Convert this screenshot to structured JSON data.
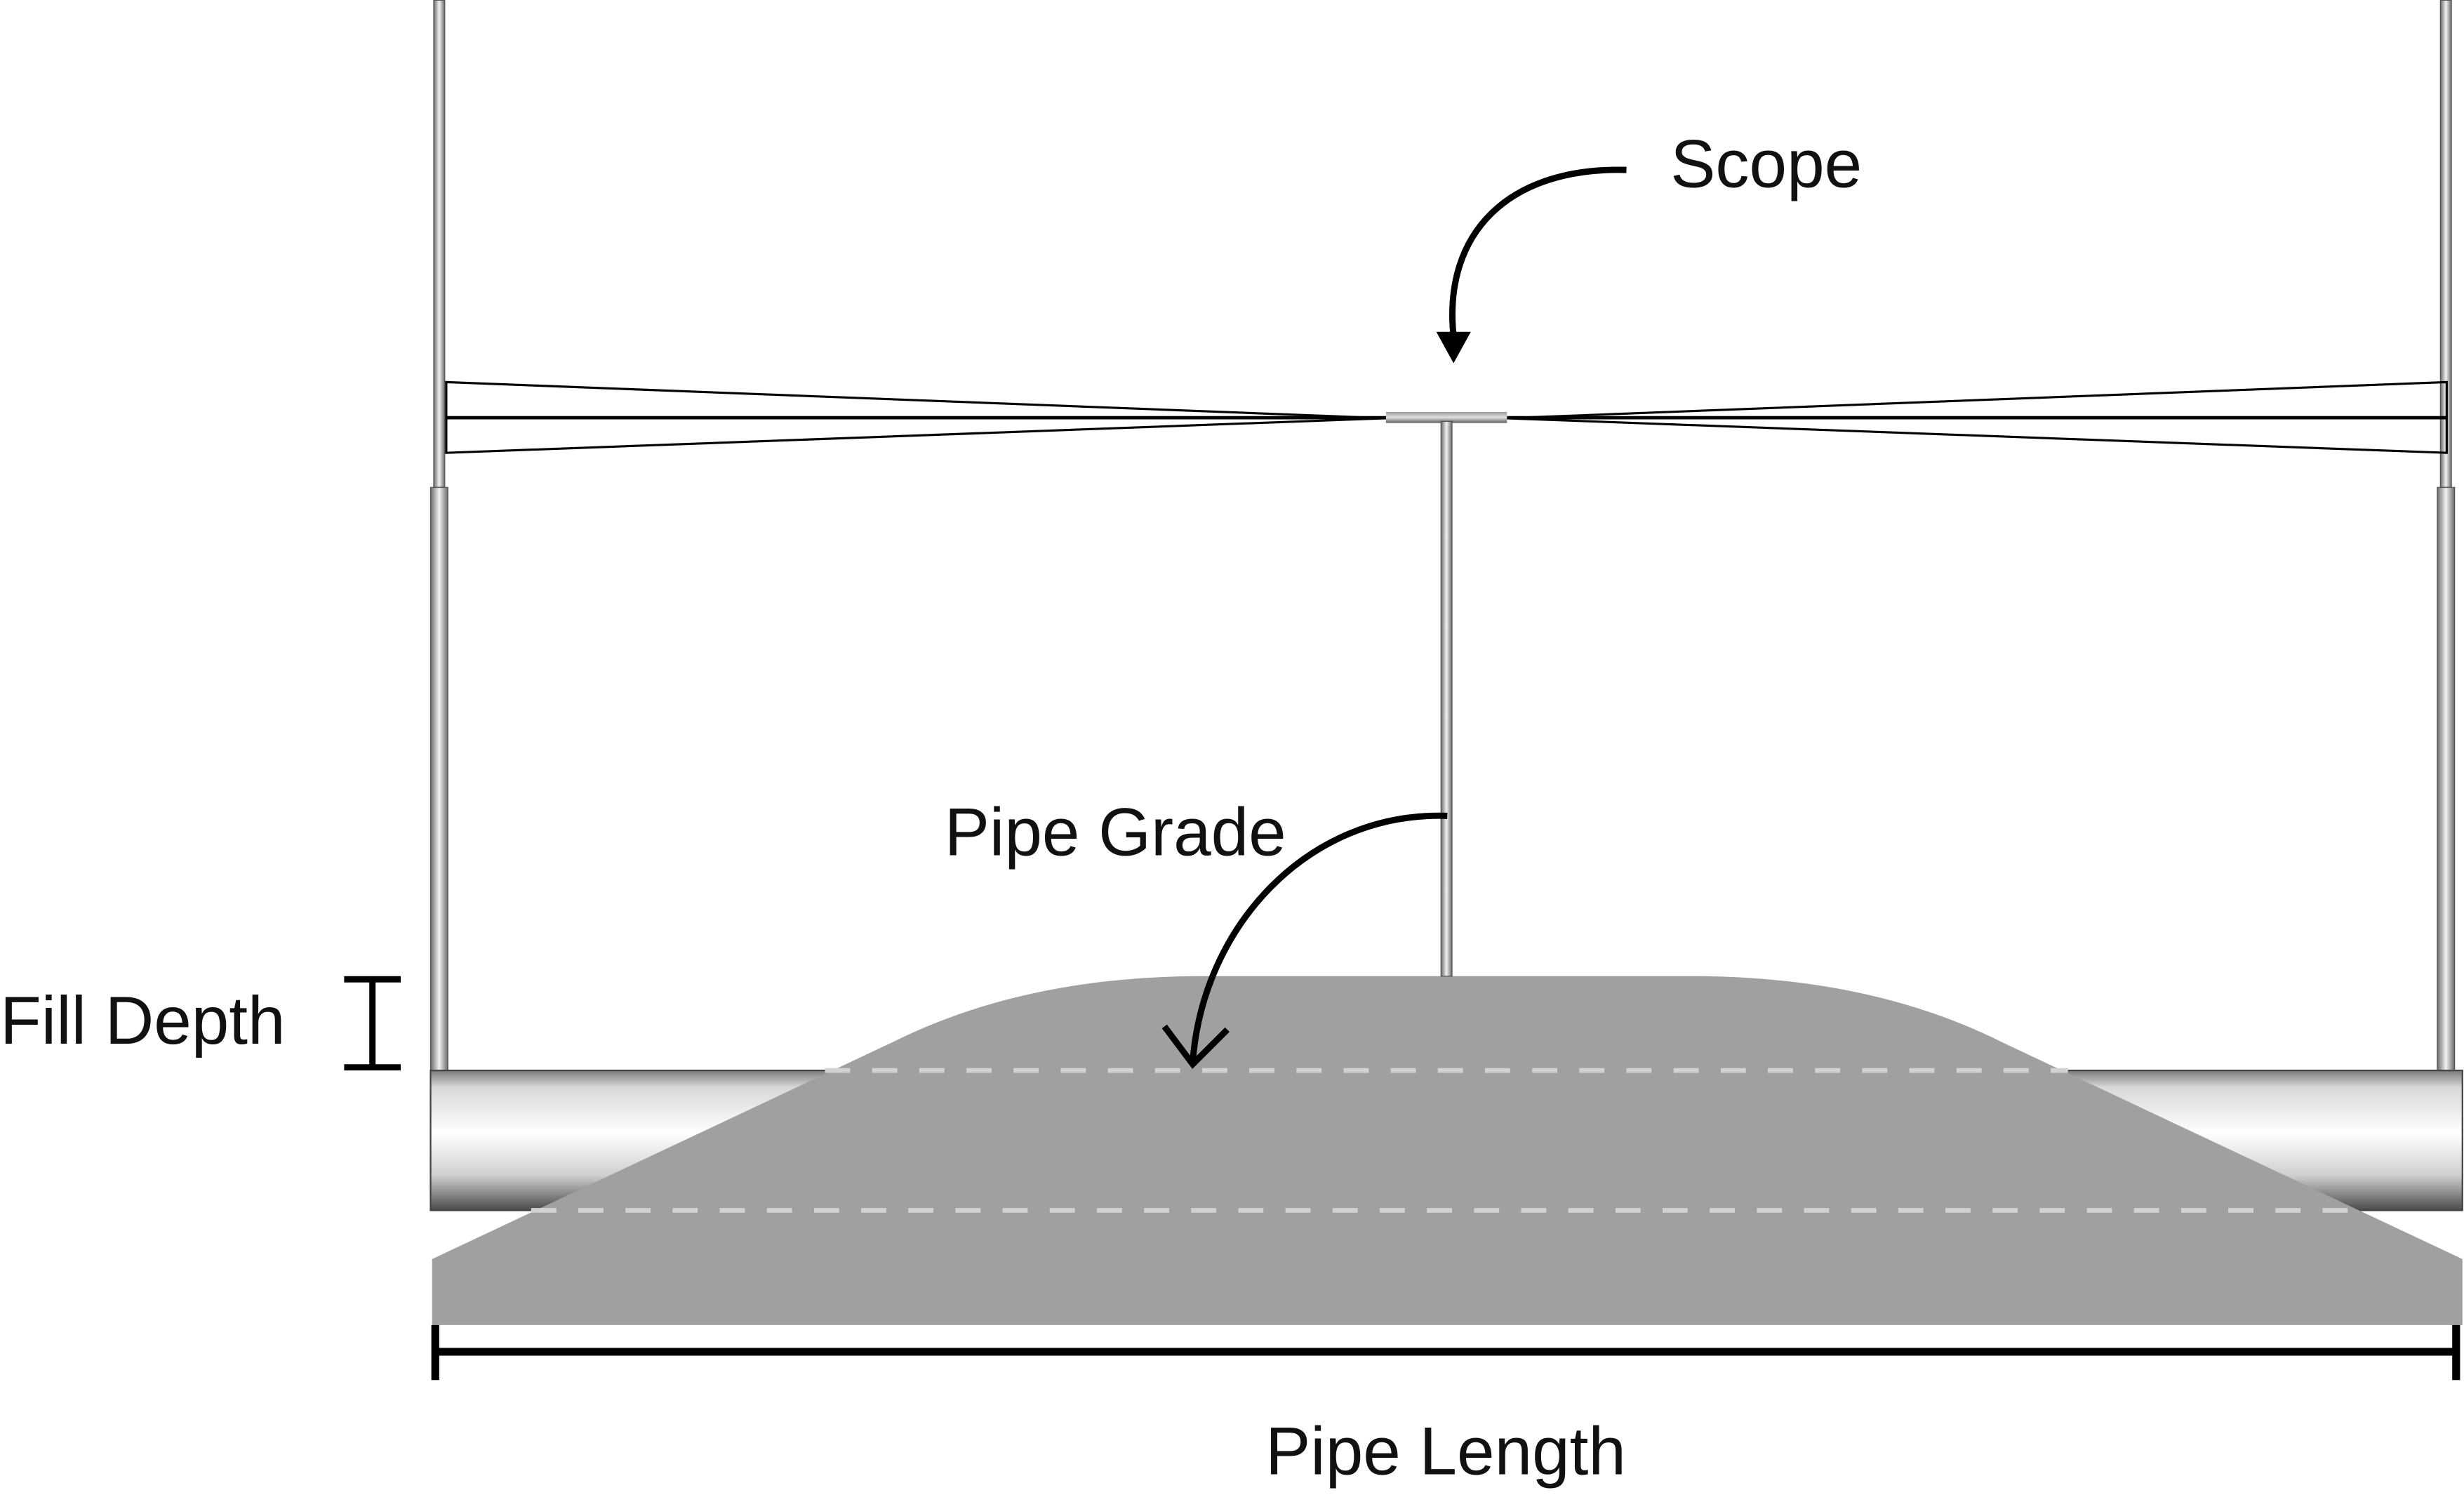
{
  "labels": {
    "scope": "Scope",
    "pipe_grade": "Pipe Grade",
    "fill_depth": "Fill Depth",
    "pipe_length": "Pipe Length"
  },
  "colors": {
    "fill_material": "#a0a0a0",
    "dashed_line": "#d2d2d2",
    "line": "#000000",
    "pipe_highlight": "#ffffff",
    "pipe_shadow": "#555555"
  }
}
